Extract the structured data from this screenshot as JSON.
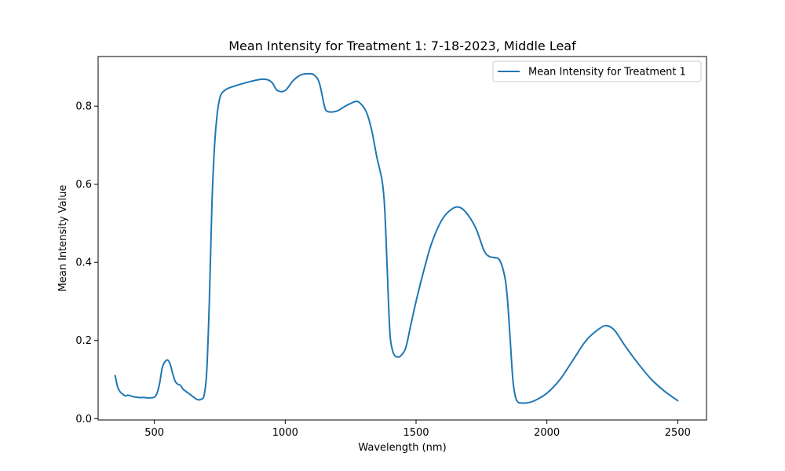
{
  "chart_data": {
    "type": "line",
    "title": "Mean Intensity for Treatment 1: 7-18-2023, Middle Leaf",
    "xlabel": "Wavelength (nm)",
    "ylabel": "Mean Intensity Value",
    "xlim": [
      285,
      2610
    ],
    "ylim": [
      -0.0035,
      0.927
    ],
    "xticks": [
      500,
      1000,
      1500,
      2000,
      2500
    ],
    "xtick_labels": [
      "500",
      "1000",
      "1500",
      "2000",
      "2500"
    ],
    "yticks": [
      0.0,
      0.2,
      0.4,
      0.6,
      0.8
    ],
    "ytick_labels": [
      "0.0",
      "0.2",
      "0.4",
      "0.6",
      "0.8"
    ],
    "grid": false,
    "legend_position": "top-right",
    "series": [
      {
        "name": "Mean Intensity for Treatment 1",
        "color": "#1f77b4",
        "x": [
          350,
          360,
          370,
          380,
          390,
          400,
          420,
          440,
          460,
          480,
          500,
          510,
          520,
          530,
          540,
          550,
          560,
          570,
          580,
          590,
          600,
          610,
          620,
          630,
          640,
          650,
          660,
          670,
          680,
          690,
          700,
          710,
          720,
          730,
          740,
          750,
          760,
          780,
          800,
          850,
          900,
          930,
          950,
          970,
          1000,
          1030,
          1060,
          1090,
          1110,
          1130,
          1150,
          1160,
          1180,
          1200,
          1230,
          1270,
          1290,
          1310,
          1330,
          1350,
          1370,
          1380,
          1390,
          1400,
          1410,
          1420,
          1430,
          1440,
          1460,
          1480,
          1500,
          1530,
          1560,
          1600,
          1640,
          1670,
          1700,
          1730,
          1760,
          1780,
          1800,
          1820,
          1840,
          1850,
          1860,
          1870,
          1880,
          1890,
          1900,
          1920,
          1950,
          2000,
          2050,
          2100,
          2150,
          2200,
          2230,
          2260,
          2300,
          2350,
          2400,
          2450,
          2500
        ],
        "y": [
          0.11,
          0.08,
          0.068,
          0.062,
          0.058,
          0.06,
          0.056,
          0.054,
          0.054,
          0.053,
          0.055,
          0.065,
          0.09,
          0.13,
          0.145,
          0.15,
          0.14,
          0.115,
          0.095,
          0.088,
          0.085,
          0.075,
          0.07,
          0.065,
          0.06,
          0.055,
          0.05,
          0.048,
          0.05,
          0.06,
          0.12,
          0.3,
          0.55,
          0.7,
          0.78,
          0.82,
          0.835,
          0.845,
          0.85,
          0.86,
          0.868,
          0.868,
          0.86,
          0.84,
          0.84,
          0.865,
          0.88,
          0.883,
          0.88,
          0.86,
          0.8,
          0.787,
          0.785,
          0.788,
          0.8,
          0.812,
          0.805,
          0.785,
          0.74,
          0.67,
          0.61,
          0.54,
          0.38,
          0.22,
          0.175,
          0.16,
          0.158,
          0.16,
          0.18,
          0.24,
          0.3,
          0.38,
          0.45,
          0.51,
          0.538,
          0.54,
          0.52,
          0.485,
          0.43,
          0.415,
          0.412,
          0.405,
          0.36,
          0.3,
          0.2,
          0.1,
          0.055,
          0.042,
          0.04,
          0.04,
          0.045,
          0.065,
          0.1,
          0.15,
          0.2,
          0.23,
          0.238,
          0.225,
          0.185,
          0.14,
          0.1,
          0.07,
          0.046
        ]
      }
    ]
  }
}
